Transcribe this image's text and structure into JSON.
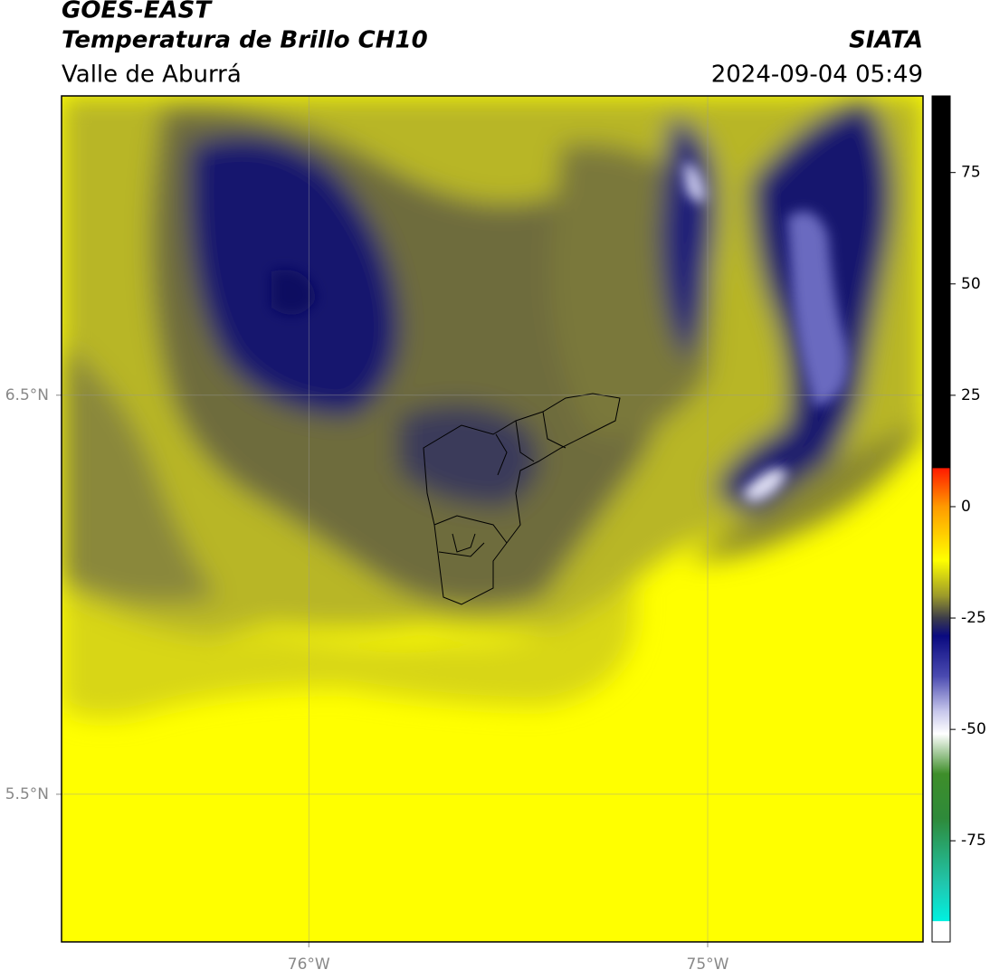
{
  "header": {
    "title": "GOES-EAST",
    "subtitle": "Temperatura de Brillo CH10",
    "region": "Valle de Aburrá",
    "source": "SIATA",
    "datetime": "2024-09-04 05:49"
  },
  "map": {
    "lonlim": [
      -76.62,
      -74.46
    ],
    "latlim": [
      5.13,
      7.25
    ],
    "lonticks": [
      {
        "value": -76,
        "label": "76°W"
      },
      {
        "value": -75,
        "label": "75°W"
      }
    ],
    "latticks": [
      {
        "value": 6.5,
        "label": "6.5°N"
      },
      {
        "value": 5.5,
        "label": "5.5°N"
      }
    ]
  },
  "colorbar": {
    "lim": [
      -97.7,
      92.2
    ],
    "ticks": [
      75,
      50,
      25,
      0,
      -25,
      -50,
      -75
    ],
    "stops": [
      {
        "value": 92.2,
        "color": "#000000"
      },
      {
        "value": 8.7,
        "color": "#000000"
      },
      {
        "value": 8.6,
        "color": "#ff1a00"
      },
      {
        "value": 0,
        "color": "#ff9a00"
      },
      {
        "value": -12,
        "color": "#ffff00"
      },
      {
        "value": -20,
        "color": "#9c9a2a"
      },
      {
        "value": -25,
        "color": "#3c3c4a"
      },
      {
        "value": -29,
        "color": "#0a0a80"
      },
      {
        "value": -38,
        "color": "#4a4ab0"
      },
      {
        "value": -46,
        "color": "#c8c8ec"
      },
      {
        "value": -51,
        "color": "#ffffff"
      },
      {
        "value": -60,
        "color": "#3e8e2a"
      },
      {
        "value": -70,
        "color": "#2e8a3a"
      },
      {
        "value": -85,
        "color": "#20c8b0"
      },
      {
        "value": -93,
        "color": "#00f0e0"
      },
      {
        "value": -93.1,
        "color": "#ffffff"
      },
      {
        "value": -97.7,
        "color": "#ffffff"
      }
    ]
  }
}
